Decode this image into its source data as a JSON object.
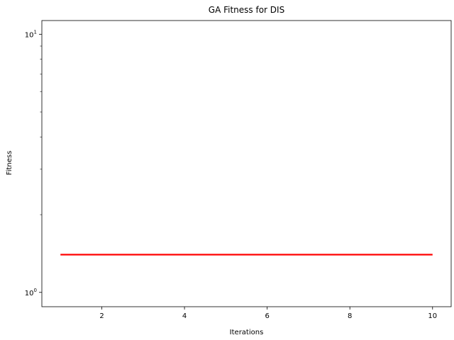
{
  "chart_data": {
    "type": "line",
    "title": "GA Fitness for DIS",
    "xlabel": "Iterations",
    "ylabel": "Fitness",
    "yscale": "log",
    "xlim": [
      0.55,
      10.45
    ],
    "ylim": [
      0.88,
      11.3
    ],
    "x_ticks": [
      2,
      4,
      6,
      8,
      10
    ],
    "y_major_ticks": [
      {
        "value": 1,
        "label": "10",
        "exp": "0"
      },
      {
        "value": 10,
        "label": "10",
        "exp": "1"
      }
    ],
    "y_minor_ticks": [
      2,
      3,
      4,
      5,
      6,
      7,
      8,
      9
    ],
    "grid": false,
    "series": [
      {
        "color": "#ff0000",
        "x": [
          1,
          2,
          3,
          4,
          5,
          6,
          7,
          8,
          9,
          10
        ],
        "y": [
          1.4,
          1.4,
          1.4,
          1.4,
          1.4,
          1.4,
          1.4,
          1.4,
          1.4,
          1.4
        ]
      }
    ]
  }
}
